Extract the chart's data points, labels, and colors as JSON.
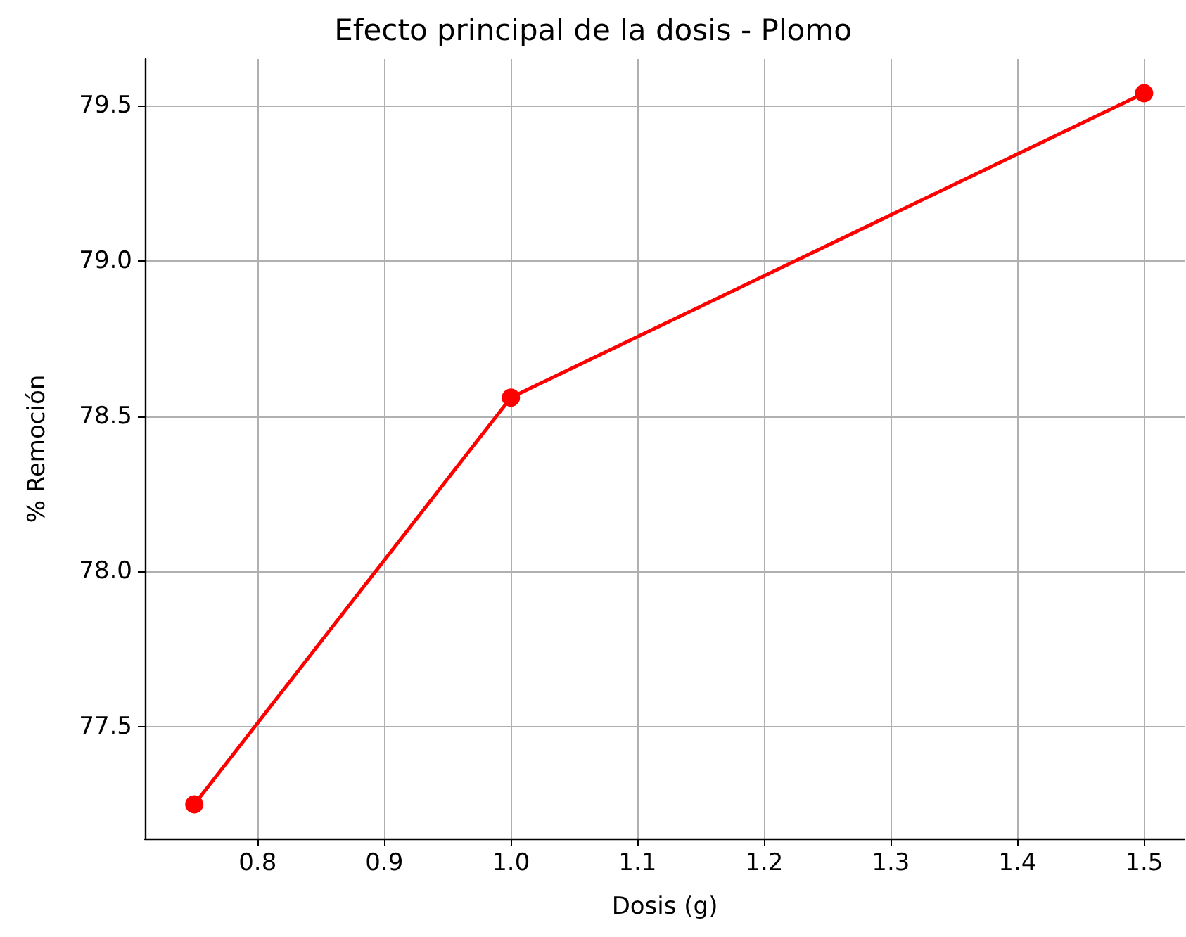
{
  "chart_data": {
    "type": "line",
    "title": "Efecto principal de la dosis - Plomo",
    "xlabel": "Dosis (g)",
    "ylabel": "% Remoción",
    "x": [
      0.75,
      1.0,
      1.5
    ],
    "series": [
      {
        "color": "#ff0000",
        "values": [
          77.25,
          78.56,
          79.54
        ]
      }
    ],
    "xlim": [
      0.711,
      1.532
    ],
    "ylim": [
      77.14,
      79.65
    ],
    "xticks": [
      0.8,
      0.9,
      {
        "value": 1,
        "label": "1.0"
      },
      1.1,
      1.2,
      1.3,
      1.4,
      1.5
    ],
    "yticks": [
      77.5,
      {
        "value": 78,
        "label": "78.0"
      },
      78.5,
      {
        "value": 79,
        "label": "79.0"
      },
      79.5
    ],
    "grid": true,
    "marker": "circle",
    "line_style": "solid"
  }
}
